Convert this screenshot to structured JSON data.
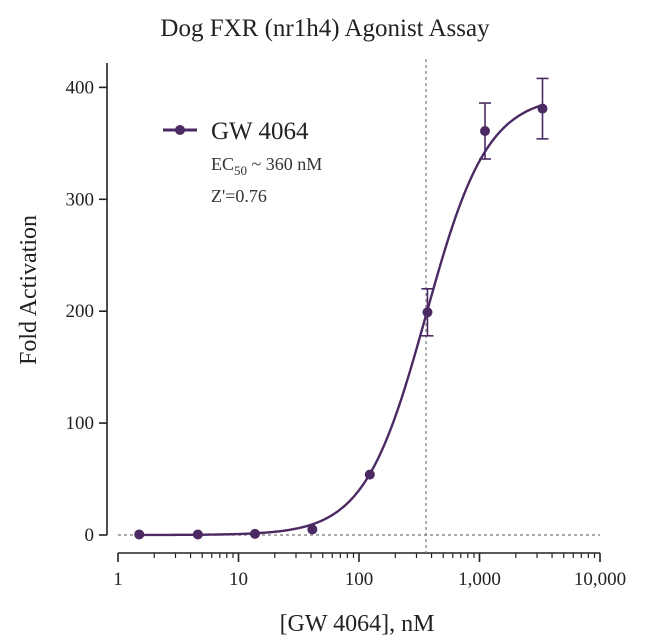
{
  "chart_data": {
    "type": "scatter",
    "title": "Dog FXR (nr1h4) Agonist Assay",
    "xlabel": "[GW 4064], nM",
    "ylabel": "Fold Activation",
    "x_scale": "log",
    "xlim": [
      1,
      10000
    ],
    "ylim": [
      0,
      420
    ],
    "x_ticks": [
      1,
      10,
      100,
      1000,
      10000
    ],
    "x_tick_labels": [
      "1",
      "10",
      "100",
      "1,000",
      "10,000"
    ],
    "y_ticks": [
      0,
      100,
      200,
      300,
      400
    ],
    "y_tick_labels": [
      "0",
      "100",
      "200",
      "300",
      "400"
    ],
    "reference_line_x": 360,
    "baseline_y": 0,
    "series": [
      {
        "name": "GW 4064",
        "color": "#4b2a63",
        "x": [
          1.5,
          4.6,
          13.7,
          41,
          123,
          370,
          1111,
          3333
        ],
        "y": [
          0.5,
          0.5,
          1,
          5,
          54,
          199,
          361,
          381
        ],
        "error": [
          0,
          0,
          0,
          0,
          0,
          21,
          25,
          27
        ]
      }
    ],
    "fit": {
      "bottom": 0,
      "top": 393,
      "ec50": 360,
      "hill": 1.7
    },
    "annotations": {
      "ec_prefix": "EC",
      "ec_subscript": "50",
      "ec_value": " ~ 360 nM",
      "z_prime": "Z'=0.76"
    },
    "legend_position": "top-left",
    "grid": false
  }
}
